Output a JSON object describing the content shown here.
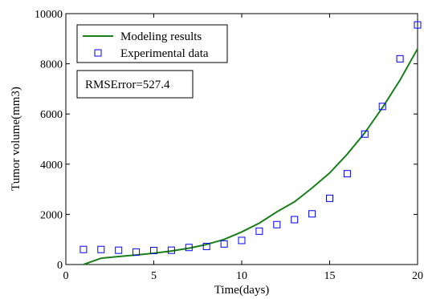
{
  "chart_data": {
    "type": "line",
    "xlabel": "Time(days)",
    "ylabel": "Tumor volume(mm3)",
    "xlim": [
      0,
      20
    ],
    "ylim": [
      0,
      10000
    ],
    "x_ticks": [
      "0",
      "5",
      "10",
      "15",
      "20"
    ],
    "y_ticks": [
      "0",
      "2000",
      "4000",
      "6000",
      "8000",
      "10000"
    ],
    "grid": false,
    "legend_placement": "top-left",
    "series": [
      {
        "name": "Modeling results",
        "style": "line",
        "color": "#1a7f1a",
        "x": [
          1,
          2,
          3,
          4,
          5,
          6,
          7,
          8,
          9,
          10,
          11,
          12,
          13,
          14,
          15,
          16,
          17,
          18,
          19,
          20
        ],
        "y": [
          0,
          250,
          320,
          380,
          450,
          540,
          650,
          800,
          1000,
          1300,
          1650,
          2100,
          2500,
          3050,
          3650,
          4400,
          5250,
          6250,
          7350,
          8600
        ]
      },
      {
        "name": "Experimental data",
        "style": "markers",
        "color": "#0000ff",
        "x": [
          1,
          2,
          3,
          4,
          5,
          6,
          7,
          8,
          9,
          10,
          11,
          12,
          13,
          14,
          15,
          16,
          17,
          18,
          19,
          20
        ],
        "y": [
          600,
          600,
          570,
          500,
          560,
          570,
          680,
          720,
          820,
          960,
          1330,
          1590,
          1790,
          2020,
          2640,
          3620,
          5200,
          6300,
          8200,
          9550
        ]
      }
    ],
    "annotation": "RMSError=527.4"
  }
}
